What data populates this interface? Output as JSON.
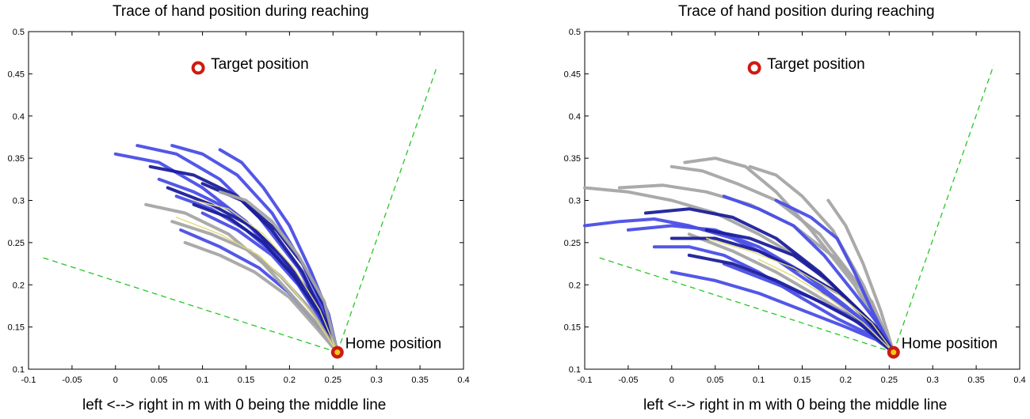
{
  "chart_data": [
    {
      "type": "line",
      "title": "Trace of hand position during reaching",
      "xlabel": "left <--> right in m with 0 being the middle line",
      "ylabel": "",
      "xlim": [
        -0.1,
        0.4
      ],
      "ylim": [
        0.1,
        0.5
      ],
      "x_ticks": [
        "-0.1",
        "-0.05",
        "0",
        "0.05",
        "0.1",
        "0.15",
        "0.2",
        "0.25",
        "0.3",
        "0.35",
        "0.4"
      ],
      "y_ticks": [
        "0.1",
        "0.15",
        "0.2",
        "0.25",
        "0.3",
        "0.35",
        "0.4",
        "0.45",
        "0.5"
      ],
      "grid": false,
      "colors": {
        "blue": "#4a4ee6",
        "dark_blue": "#1c1f9a",
        "gray": "#a5a5a5",
        "yellow": "#e3dc7a",
        "guide": "#27c627",
        "marker": "#cc1b12"
      },
      "annotations": [
        {
          "text": "Target position",
          "x": 0.095,
          "y": 0.457
        },
        {
          "text": "Home position",
          "x": 0.255,
          "y": 0.12
        }
      ],
      "target": {
        "x": 0.095,
        "y": 0.457
      },
      "home": {
        "x": 0.255,
        "y": 0.12
      },
      "guide_lines": [
        {
          "x": [
            -0.083,
            0.255
          ],
          "y": [
            0.232,
            0.12
          ]
        },
        {
          "x": [
            0.255,
            0.37
          ],
          "y": [
            0.12,
            0.46
          ]
        }
      ],
      "series": [
        {
          "color": "blue",
          "x": [
            0.0,
            0.05,
            0.1,
            0.15,
            0.2,
            0.235,
            0.255
          ],
          "y": [
            0.355,
            0.345,
            0.315,
            0.275,
            0.215,
            0.165,
            0.12
          ]
        },
        {
          "color": "blue",
          "x": [
            0.025,
            0.07,
            0.12,
            0.165,
            0.21,
            0.24,
            0.255
          ],
          "y": [
            0.365,
            0.355,
            0.325,
            0.28,
            0.22,
            0.165,
            0.12
          ]
        },
        {
          "color": "blue",
          "x": [
            0.065,
            0.1,
            0.14,
            0.18,
            0.215,
            0.24,
            0.255
          ],
          "y": [
            0.365,
            0.355,
            0.33,
            0.285,
            0.225,
            0.17,
            0.12
          ]
        },
        {
          "color": "blue",
          "x": [
            0.12,
            0.145,
            0.17,
            0.2,
            0.225,
            0.245,
            0.255
          ],
          "y": [
            0.36,
            0.345,
            0.315,
            0.27,
            0.215,
            0.165,
            0.12
          ]
        },
        {
          "color": "blue",
          "x": [
            0.05,
            0.09,
            0.13,
            0.17,
            0.205,
            0.235,
            0.255
          ],
          "y": [
            0.325,
            0.31,
            0.29,
            0.255,
            0.21,
            0.16,
            0.12
          ]
        },
        {
          "color": "blue",
          "x": [
            0.07,
            0.11,
            0.15,
            0.19,
            0.22,
            0.245,
            0.255
          ],
          "y": [
            0.305,
            0.29,
            0.265,
            0.23,
            0.19,
            0.15,
            0.12
          ]
        },
        {
          "color": "blue",
          "x": [
            0.1,
            0.14,
            0.18,
            0.21,
            0.235,
            0.255
          ],
          "y": [
            0.285,
            0.265,
            0.235,
            0.2,
            0.16,
            0.12
          ]
        },
        {
          "color": "blue",
          "x": [
            0.075,
            0.12,
            0.165,
            0.2,
            0.23,
            0.255
          ],
          "y": [
            0.265,
            0.245,
            0.22,
            0.19,
            0.155,
            0.12
          ]
        },
        {
          "color": "dark_blue",
          "x": [
            0.04,
            0.09,
            0.14,
            0.18,
            0.215,
            0.24,
            0.255
          ],
          "y": [
            0.34,
            0.33,
            0.305,
            0.265,
            0.215,
            0.16,
            0.12
          ]
        },
        {
          "color": "dark_blue",
          "x": [
            0.06,
            0.11,
            0.155,
            0.19,
            0.22,
            0.245,
            0.255
          ],
          "y": [
            0.315,
            0.295,
            0.27,
            0.235,
            0.195,
            0.15,
            0.12
          ]
        },
        {
          "color": "dark_blue",
          "x": [
            0.09,
            0.13,
            0.17,
            0.205,
            0.235,
            0.255
          ],
          "y": [
            0.295,
            0.28,
            0.25,
            0.21,
            0.165,
            0.12
          ]
        },
        {
          "color": "dark_blue",
          "x": [
            0.1,
            0.145,
            0.185,
            0.215,
            0.24,
            0.255
          ],
          "y": [
            0.32,
            0.3,
            0.265,
            0.225,
            0.175,
            0.12
          ]
        },
        {
          "color": "gray",
          "x": [
            0.035,
            0.08,
            0.13,
            0.17,
            0.205,
            0.235,
            0.255
          ],
          "y": [
            0.295,
            0.285,
            0.26,
            0.225,
            0.185,
            0.15,
            0.12
          ]
        },
        {
          "color": "gray",
          "x": [
            0.065,
            0.11,
            0.155,
            0.19,
            0.225,
            0.255
          ],
          "y": [
            0.275,
            0.26,
            0.24,
            0.21,
            0.17,
            0.12
          ]
        },
        {
          "color": "gray",
          "x": [
            0.12,
            0.15,
            0.18,
            0.21,
            0.24,
            0.255
          ],
          "y": [
            0.31,
            0.3,
            0.275,
            0.235,
            0.18,
            0.12
          ]
        },
        {
          "color": "gray",
          "x": [
            0.08,
            0.12,
            0.16,
            0.2,
            0.23,
            0.255
          ],
          "y": [
            0.25,
            0.235,
            0.215,
            0.185,
            0.15,
            0.12
          ]
        },
        {
          "color": "yellow",
          "x": [
            0.09,
            0.13,
            0.17,
            0.205,
            0.235,
            0.255
          ],
          "y": [
            0.3,
            0.29,
            0.26,
            0.22,
            0.17,
            0.12
          ]
        },
        {
          "color": "yellow",
          "x": [
            0.07,
            0.12,
            0.165,
            0.2,
            0.23,
            0.255
          ],
          "y": [
            0.28,
            0.26,
            0.235,
            0.2,
            0.16,
            0.12
          ]
        }
      ]
    },
    {
      "type": "line",
      "title": "Trace of hand position during reaching",
      "xlabel": "left <--> right in m with 0 being the middle line",
      "ylabel": "",
      "xlim": [
        -0.1,
        0.4
      ],
      "ylim": [
        0.1,
        0.5
      ],
      "x_ticks": [
        "-0.1",
        "-0.05",
        "0",
        "0.05",
        "0.1",
        "0.15",
        "0.2",
        "0.25",
        "0.3",
        "0.35",
        "0.4"
      ],
      "y_ticks": [
        "0.1",
        "0.15",
        "0.2",
        "0.25",
        "0.3",
        "0.35",
        "0.4",
        "0.45",
        "0.5"
      ],
      "grid": false,
      "colors": {
        "blue": "#4a4ee6",
        "dark_blue": "#1c1f9a",
        "gray": "#a5a5a5",
        "yellow": "#e3dc7a",
        "guide": "#27c627",
        "marker": "#cc1b12"
      },
      "annotations": [
        {
          "text": "Target position",
          "x": 0.095,
          "y": 0.457
        },
        {
          "text": "Home position",
          "x": 0.255,
          "y": 0.12
        }
      ],
      "target": {
        "x": 0.095,
        "y": 0.457
      },
      "home": {
        "x": 0.255,
        "y": 0.12
      },
      "guide_lines": [
        {
          "x": [
            -0.083,
            0.255
          ],
          "y": [
            0.232,
            0.12
          ]
        },
        {
          "x": [
            0.255,
            0.37
          ],
          "y": [
            0.12,
            0.46
          ]
        }
      ],
      "series": [
        {
          "color": "gray",
          "x": [
            -0.1,
            -0.05,
            0.0,
            0.05,
            0.1,
            0.15,
            0.2,
            0.255
          ],
          "y": [
            0.315,
            0.31,
            0.3,
            0.285,
            0.26,
            0.23,
            0.185,
            0.12
          ]
        },
        {
          "color": "gray",
          "x": [
            -0.06,
            -0.01,
            0.04,
            0.09,
            0.14,
            0.19,
            0.23,
            0.255
          ],
          "y": [
            0.315,
            0.318,
            0.31,
            0.295,
            0.27,
            0.23,
            0.18,
            0.12
          ]
        },
        {
          "color": "gray",
          "x": [
            0.0,
            0.035,
            0.075,
            0.12,
            0.17,
            0.215,
            0.255
          ],
          "y": [
            0.34,
            0.335,
            0.32,
            0.3,
            0.26,
            0.2,
            0.12
          ]
        },
        {
          "color": "gray",
          "x": [
            0.015,
            0.05,
            0.085,
            0.12,
            0.16,
            0.21,
            0.255
          ],
          "y": [
            0.345,
            0.35,
            0.34,
            0.31,
            0.265,
            0.2,
            0.12
          ]
        },
        {
          "color": "gray",
          "x": [
            0.09,
            0.12,
            0.15,
            0.185,
            0.22,
            0.255
          ],
          "y": [
            0.34,
            0.33,
            0.305,
            0.265,
            0.2,
            0.12
          ]
        },
        {
          "color": "gray",
          "x": [
            0.18,
            0.2,
            0.22,
            0.24,
            0.255
          ],
          "y": [
            0.3,
            0.27,
            0.225,
            0.17,
            0.12
          ]
        },
        {
          "color": "gray",
          "x": [
            0.02,
            0.07,
            0.12,
            0.17,
            0.21,
            0.24,
            0.255
          ],
          "y": [
            0.26,
            0.24,
            0.215,
            0.185,
            0.16,
            0.14,
            0.12
          ]
        },
        {
          "color": "blue",
          "x": [
            -0.1,
            -0.06,
            -0.02,
            0.02,
            0.07,
            0.12,
            0.17,
            0.22,
            0.255
          ],
          "y": [
            0.27,
            0.275,
            0.278,
            0.27,
            0.255,
            0.23,
            0.195,
            0.155,
            0.12
          ]
        },
        {
          "color": "blue",
          "x": [
            -0.05,
            0.0,
            0.05,
            0.1,
            0.15,
            0.2,
            0.235,
            0.255
          ],
          "y": [
            0.265,
            0.27,
            0.265,
            0.245,
            0.215,
            0.175,
            0.145,
            0.12
          ]
        },
        {
          "color": "blue",
          "x": [
            -0.02,
            0.02,
            0.06,
            0.1,
            0.14,
            0.19,
            0.23,
            0.255
          ],
          "y": [
            0.245,
            0.245,
            0.235,
            0.215,
            0.19,
            0.16,
            0.14,
            0.12
          ]
        },
        {
          "color": "blue",
          "x": [
            0.0,
            0.05,
            0.1,
            0.15,
            0.2,
            0.235,
            0.255
          ],
          "y": [
            0.215,
            0.205,
            0.19,
            0.17,
            0.15,
            0.135,
            0.12
          ]
        },
        {
          "color": "blue",
          "x": [
            0.06,
            0.1,
            0.14,
            0.175,
            0.21,
            0.24,
            0.255
          ],
          "y": [
            0.305,
            0.29,
            0.27,
            0.235,
            0.19,
            0.15,
            0.12
          ]
        },
        {
          "color": "blue",
          "x": [
            0.12,
            0.16,
            0.19,
            0.21,
            0.23,
            0.255
          ],
          "y": [
            0.3,
            0.28,
            0.255,
            0.215,
            0.17,
            0.12
          ]
        },
        {
          "color": "blue",
          "x": [
            0.06,
            0.11,
            0.16,
            0.2,
            0.235,
            0.255
          ],
          "y": [
            0.225,
            0.205,
            0.185,
            0.165,
            0.14,
            0.12
          ]
        },
        {
          "color": "dark_blue",
          "x": [
            -0.03,
            0.02,
            0.07,
            0.12,
            0.17,
            0.215,
            0.255
          ],
          "y": [
            0.285,
            0.29,
            0.28,
            0.255,
            0.215,
            0.17,
            0.12
          ]
        },
        {
          "color": "dark_blue",
          "x": [
            0.0,
            0.05,
            0.1,
            0.15,
            0.2,
            0.235,
            0.255
          ],
          "y": [
            0.255,
            0.255,
            0.24,
            0.215,
            0.185,
            0.15,
            0.12
          ]
        },
        {
          "color": "dark_blue",
          "x": [
            0.04,
            0.09,
            0.14,
            0.18,
            0.22,
            0.255
          ],
          "y": [
            0.265,
            0.255,
            0.235,
            0.205,
            0.165,
            0.12
          ]
        },
        {
          "color": "dark_blue",
          "x": [
            0.02,
            0.07,
            0.12,
            0.17,
            0.215,
            0.255
          ],
          "y": [
            0.235,
            0.225,
            0.205,
            0.18,
            0.155,
            0.12
          ]
        },
        {
          "color": "yellow",
          "x": [
            0.04,
            0.09,
            0.14,
            0.19,
            0.23,
            0.255
          ],
          "y": [
            0.255,
            0.24,
            0.22,
            0.19,
            0.155,
            0.12
          ]
        },
        {
          "color": "yellow",
          "x": [
            0.1,
            0.14,
            0.18,
            0.22,
            0.255
          ],
          "y": [
            0.23,
            0.21,
            0.185,
            0.155,
            0.12
          ]
        }
      ]
    }
  ]
}
